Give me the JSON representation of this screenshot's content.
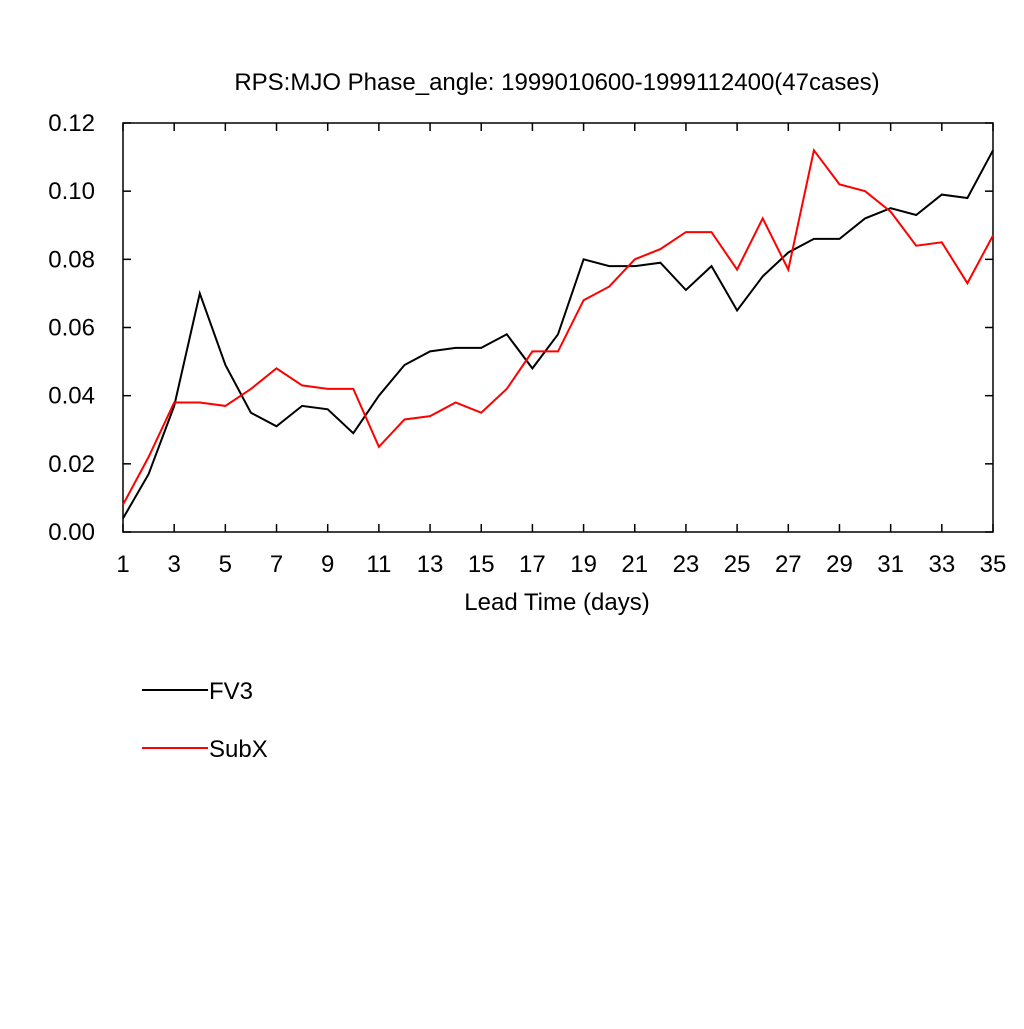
{
  "chart_data": {
    "type": "line",
    "title": "RPS:MJO Phase_angle: 1999010600-1999112400(47cases)",
    "xlabel": "Lead Time (days)",
    "ylabel": "",
    "xlim": [
      1,
      35
    ],
    "ylim": [
      0,
      0.12
    ],
    "x": [
      1,
      2,
      3,
      4,
      5,
      6,
      7,
      8,
      9,
      10,
      11,
      12,
      13,
      14,
      15,
      16,
      17,
      18,
      19,
      20,
      21,
      22,
      23,
      24,
      25,
      26,
      27,
      28,
      29,
      30,
      31,
      32,
      33,
      34,
      35
    ],
    "xticks": [
      1,
      3,
      5,
      7,
      9,
      11,
      13,
      15,
      17,
      19,
      21,
      23,
      25,
      27,
      29,
      31,
      33,
      35
    ],
    "xtick_labels": [
      "1",
      "3",
      "5",
      "7",
      "9",
      "11",
      "13",
      "15",
      "17",
      "19",
      "21",
      "23",
      "25",
      "27",
      "29",
      "31",
      "33",
      "35"
    ],
    "yticks": [
      0,
      0.02,
      0.04,
      0.06,
      0.08,
      0.1,
      0.12
    ],
    "ytick_labels": [
      "0.00",
      "0.02",
      "0.04",
      "0.06",
      "0.08",
      "0.10",
      "0.12"
    ],
    "grid": false,
    "legend_position": "below-left",
    "series": [
      {
        "name": "FV3",
        "color": "#000000",
        "values": [
          0.004,
          0.017,
          0.037,
          0.07,
          0.049,
          0.035,
          0.031,
          0.037,
          0.036,
          0.029,
          0.04,
          0.049,
          0.053,
          0.054,
          0.054,
          0.058,
          0.048,
          0.058,
          0.08,
          0.078,
          0.078,
          0.079,
          0.071,
          0.078,
          0.065,
          0.075,
          0.082,
          0.086,
          0.086,
          0.092,
          0.095,
          0.093,
          0.099,
          0.098,
          0.112
        ]
      },
      {
        "name": "SubX",
        "color": "#ff0000",
        "values": [
          0.008,
          0.022,
          0.038,
          0.038,
          0.037,
          0.042,
          0.048,
          0.043,
          0.042,
          0.042,
          0.025,
          0.033,
          0.034,
          0.038,
          0.035,
          0.042,
          0.053,
          0.053,
          0.068,
          0.072,
          0.08,
          0.083,
          0.088,
          0.088,
          0.077,
          0.092,
          0.077,
          0.112,
          0.102,
          0.1,
          0.094,
          0.084,
          0.085,
          0.073,
          0.087
        ]
      }
    ]
  }
}
